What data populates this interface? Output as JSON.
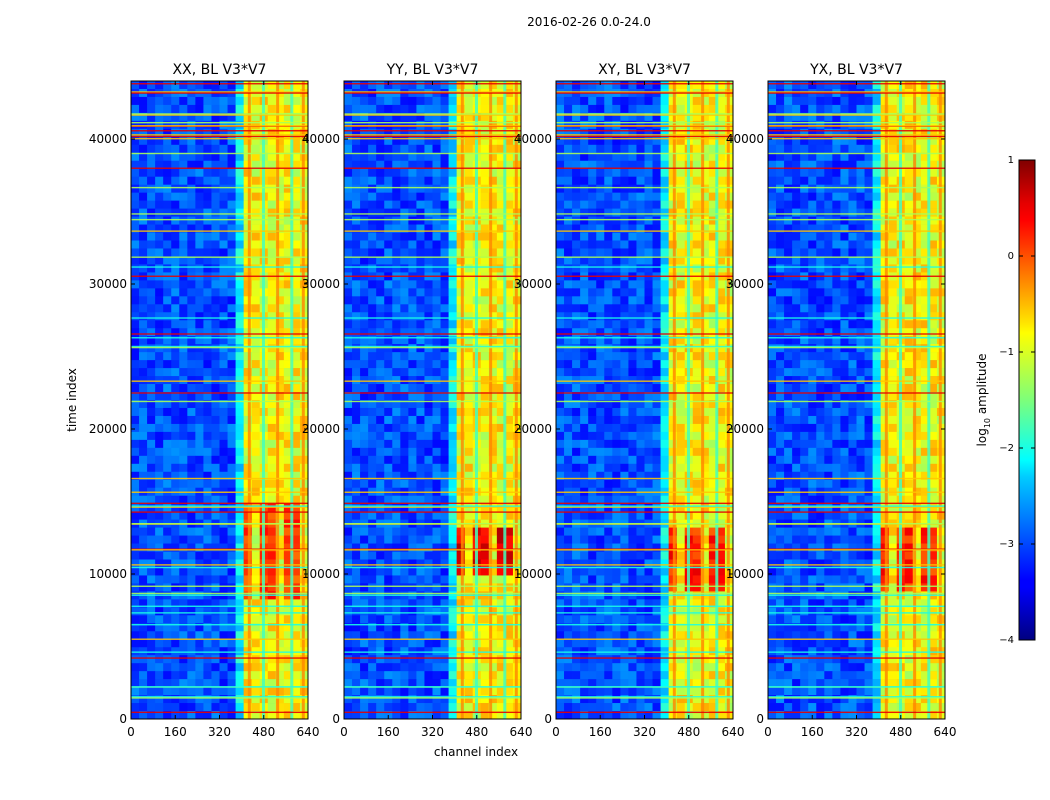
{
  "figure": {
    "suptitle": "2016-02-26 0.0-24.0",
    "xlabel": "channel index",
    "ylabel": "time index"
  },
  "colorbar": {
    "label_prefix": "log",
    "label_sub": "10",
    "label_suffix": " amplitude",
    "range": [
      -4,
      1
    ],
    "ticks": [
      1,
      0,
      -1,
      -2,
      -3,
      -4
    ],
    "tick_labels": [
      "1",
      "0",
      "−1",
      "−2",
      "−3",
      "−4"
    ]
  },
  "chart_data": [
    {
      "type": "heatmap",
      "title": "XX, BL V3*V7",
      "xlabel": "channel index",
      "ylabel": "time index",
      "xlim": [
        0,
        640
      ],
      "ylim": [
        0,
        44000
      ],
      "x_ticks": [
        0,
        160,
        320,
        480,
        640
      ],
      "y_ticks": [
        0,
        10000,
        20000,
        30000,
        40000
      ],
      "colormap": "jet",
      "value_range_log10": [
        -4,
        1
      ],
      "background_log10": -3,
      "band_start_channel": 410,
      "band_level_log10": -0.9,
      "hot_region_time": [
        8000,
        15000
      ],
      "hot_level_log10": 0.4
    },
    {
      "type": "heatmap",
      "title": "YY, BL V3*V7",
      "xlabel": "channel index",
      "ylabel": "time index",
      "xlim": [
        0,
        640
      ],
      "ylim": [
        0,
        44000
      ],
      "x_ticks": [
        0,
        160,
        320,
        480,
        640
      ],
      "y_ticks": [
        0,
        10000,
        20000,
        30000,
        40000
      ],
      "colormap": "jet",
      "value_range_log10": [
        -4,
        1
      ],
      "background_log10": -3,
      "band_start_channel": 410,
      "band_level_log10": -0.9,
      "hot_region_time": [
        10000,
        13000
      ],
      "hot_level_log10": 0.8
    },
    {
      "type": "heatmap",
      "title": "XY, BL V3*V7",
      "xlabel": "channel index",
      "ylabel": "time index",
      "xlim": [
        0,
        640
      ],
      "ylim": [
        0,
        44000
      ],
      "x_ticks": [
        0,
        160,
        320,
        480,
        640
      ],
      "y_ticks": [
        0,
        10000,
        20000,
        30000,
        40000
      ],
      "colormap": "jet",
      "value_range_log10": [
        -4,
        1
      ],
      "background_log10": -3,
      "band_start_channel": 410,
      "band_level_log10": -0.9,
      "hot_region_time": [
        9000,
        13000
      ],
      "hot_level_log10": 0.5
    },
    {
      "type": "heatmap",
      "title": "YX, BL V3*V7",
      "xlabel": "channel index",
      "ylabel": "time index",
      "xlim": [
        0,
        640
      ],
      "ylim": [
        0,
        44000
      ],
      "x_ticks": [
        0,
        160,
        320,
        480,
        640
      ],
      "y_ticks": [
        0,
        10000,
        20000,
        30000,
        40000
      ],
      "colormap": "jet",
      "value_range_log10": [
        -4,
        1
      ],
      "background_log10": -3,
      "band_start_channel": 410,
      "band_level_log10": -0.9,
      "hot_region_time": [
        9000,
        13000
      ],
      "hot_level_log10": 0.5
    }
  ]
}
